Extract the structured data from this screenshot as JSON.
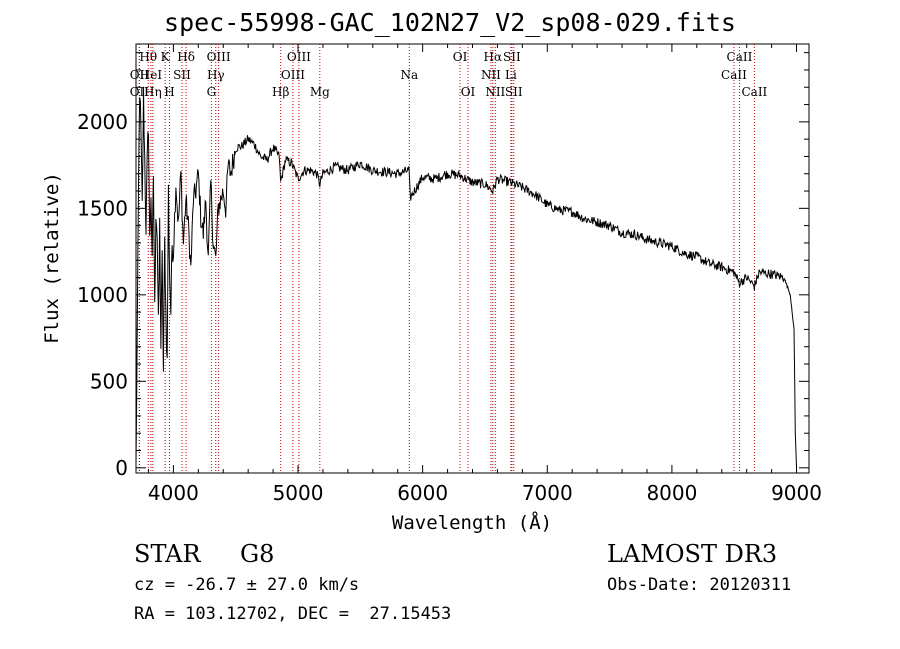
{
  "chart_data": {
    "type": "line",
    "title": "spec-55998-GAC_102N27_V2_sp08-029.fits",
    "xlabel": "Wavelength (Å)",
    "ylabel": "Flux (relative)",
    "xlim": [
      3700,
      9100
    ],
    "ylim": [
      -30,
      2450
    ],
    "x_ticks": [
      4000,
      5000,
      6000,
      7000,
      8000,
      9000
    ],
    "y_ticks": [
      0,
      500,
      1000,
      1500,
      2000
    ],
    "series": [
      {
        "name": "flux",
        "x": [
          3700,
          3710,
          3720,
          3730,
          3740,
          3750,
          3760,
          3770,
          3780,
          3790,
          3800,
          3810,
          3820,
          3830,
          3840,
          3850,
          3860,
          3870,
          3880,
          3890,
          3900,
          3910,
          3920,
          3930,
          3940,
          3950,
          3960,
          3970,
          3980,
          3990,
          4000,
          4020,
          4040,
          4060,
          4080,
          4100,
          4120,
          4140,
          4160,
          4180,
          4200,
          4220,
          4240,
          4260,
          4280,
          4300,
          4320,
          4340,
          4360,
          4380,
          4400,
          4420,
          4440,
          4460,
          4480,
          4500,
          4550,
          4600,
          4650,
          4700,
          4750,
          4800,
          4850,
          4860,
          4900,
          4950,
          5000,
          5050,
          5100,
          5150,
          5175,
          5200,
          5300,
          5400,
          5500,
          5600,
          5700,
          5800,
          5890,
          5900,
          6000,
          6100,
          6200,
          6300,
          6400,
          6500,
          6563,
          6600,
          6700,
          6800,
          6900,
          7000,
          7100,
          7200,
          7300,
          7400,
          7500,
          7600,
          7700,
          7800,
          7900,
          8000,
          8100,
          8200,
          8300,
          8400,
          8498,
          8542,
          8600,
          8662,
          8700,
          8800,
          8900,
          8950,
          8980,
          8990,
          9000
        ],
        "y": [
          0,
          750,
          1600,
          2200,
          1900,
          1500,
          2150,
          1800,
          1400,
          1750,
          2000,
          1300,
          1600,
          1150,
          1700,
          900,
          1500,
          1350,
          800,
          1400,
          700,
          1200,
          550,
          1300,
          900,
          600,
          1600,
          1100,
          900,
          1300,
          1250,
          1650,
          1400,
          1700,
          1300,
          1550,
          1400,
          1150,
          1550,
          1600,
          1700,
          1450,
          1350,
          1550,
          1200,
          1650,
          1300,
          1200,
          1500,
          1550,
          1600,
          1500,
          1750,
          1700,
          1780,
          1850,
          1860,
          1900,
          1870,
          1800,
          1780,
          1850,
          1800,
          1650,
          1780,
          1760,
          1670,
          1720,
          1720,
          1700,
          1640,
          1700,
          1740,
          1720,
          1760,
          1720,
          1710,
          1700,
          1720,
          1560,
          1680,
          1670,
          1700,
          1690,
          1650,
          1640,
          1600,
          1670,
          1650,
          1620,
          1580,
          1520,
          1490,
          1480,
          1440,
          1420,
          1400,
          1360,
          1350,
          1320,
          1300,
          1280,
          1240,
          1220,
          1180,
          1160,
          1130,
          1070,
          1100,
          1050,
          1130,
          1120,
          1100,
          1000,
          800,
          200,
          0
        ]
      }
    ],
    "spectral_lines": [
      {
        "label": "OII",
        "x": 3727,
        "row": 1
      },
      {
        "label": "OII",
        "x": 3727,
        "row": 2
      },
      {
        "label": "Hθ",
        "x": 3798,
        "row": 0
      },
      {
        "label": "HeI",
        "x": 3820,
        "row": 1
      },
      {
        "label": "Hη",
        "x": 3835,
        "row": 2
      },
      {
        "label": "K",
        "x": 3934,
        "row": 0
      },
      {
        "label": "H",
        "x": 3969,
        "row": 2
      },
      {
        "label": "SII",
        "x": 4069,
        "row": 1
      },
      {
        "label": "Hδ",
        "x": 4102,
        "row": 0
      },
      {
        "label": "OIII",
        "x": 4363,
        "row": 0
      },
      {
        "label": "Hγ",
        "x": 4340,
        "row": 1
      },
      {
        "label": "G",
        "x": 4305,
        "row": 2
      },
      {
        "label": "Hβ",
        "x": 4861,
        "row": 2
      },
      {
        "label": "OIII",
        "x": 4959,
        "row": 1
      },
      {
        "label": "OIII",
        "x": 5007,
        "row": 0
      },
      {
        "label": "Mg",
        "x": 5175,
        "row": 2
      },
      {
        "label": "Na",
        "x": 5893,
        "row": 1
      },
      {
        "label": "OI",
        "x": 6300,
        "row": 0
      },
      {
        "label": "OI",
        "x": 6364,
        "row": 2
      },
      {
        "label": "Hα",
        "x": 6563,
        "row": 0
      },
      {
        "label": "NII",
        "x": 6548,
        "row": 1
      },
      {
        "label": "NII",
        "x": 6583,
        "row": 2
      },
      {
        "label": "SII",
        "x": 6716,
        "row": 0
      },
      {
        "label": "Li",
        "x": 6708,
        "row": 1
      },
      {
        "label": "SII",
        "x": 6731,
        "row": 2
      },
      {
        "label": "CaII",
        "x": 8542,
        "row": 0
      },
      {
        "label": "CaII",
        "x": 8498,
        "row": 1
      },
      {
        "label": "CaII",
        "x": 8662,
        "row": 2
      }
    ]
  },
  "info": {
    "class": "STAR",
    "subclass": "G8",
    "cz": "cz = -26.7 ± 27.0 km/s",
    "radec": "RA = 103.12702, DEC =  27.15453",
    "survey": "LAMOST DR3",
    "obsdate": "Obs-Date: 20120311"
  }
}
